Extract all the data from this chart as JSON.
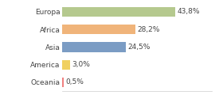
{
  "categories": [
    "Europa",
    "Africa",
    "Asia",
    "America",
    "Oceania"
  ],
  "values": [
    43.8,
    28.2,
    24.5,
    3.0,
    0.5
  ],
  "labels": [
    "43,8%",
    "28,2%",
    "24,5%",
    "3,0%",
    "0,5%"
  ],
  "bar_colors": [
    "#b5c98e",
    "#f0b47a",
    "#7b9cc4",
    "#f0d060",
    "#f08080"
  ],
  "background_color": "#ffffff",
  "xlim": [
    0,
    58
  ],
  "label_fontsize": 6.5,
  "tick_fontsize": 6.5,
  "bar_height": 0.55
}
